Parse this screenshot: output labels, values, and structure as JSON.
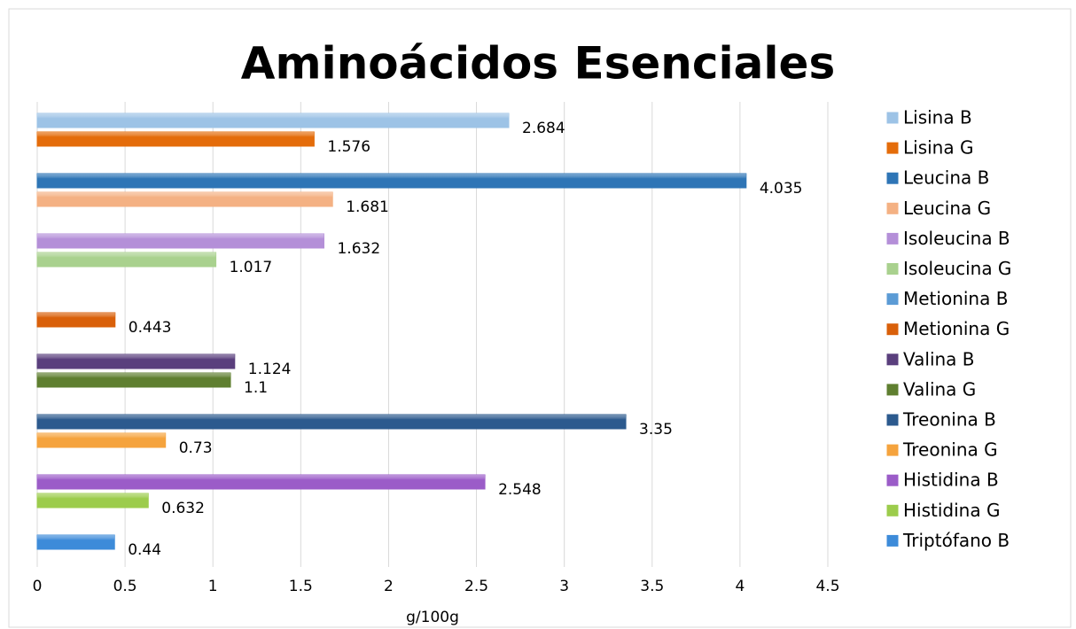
{
  "chart_data": {
    "type": "hbar",
    "title": "Aminoácidos Esenciales",
    "x_label": "g/100g",
    "xlim": [
      0,
      4.5
    ],
    "xticks": [
      0,
      0.5,
      1,
      1.5,
      2,
      2.5,
      3,
      3.5,
      4,
      4.5
    ],
    "grid": true,
    "legend": "right",
    "series": [
      {
        "name": "Lisina B",
        "color": "#9dc3e6",
        "values": [
          2.684
        ]
      },
      {
        "name": "Lisina G",
        "color": "#e46c0a",
        "values": [
          1.576
        ]
      },
      {
        "name": "Leucina B",
        "color": "#2e75b6",
        "values": [
          4.035
        ]
      },
      {
        "name": "Leucina G",
        "color": "#f4b183",
        "values": [
          1.681
        ]
      },
      {
        "name": "Isoleucina B",
        "color": "#b48fd8",
        "values": [
          1.632
        ]
      },
      {
        "name": "Isoleucina G",
        "color": "#a9d18e",
        "values": [
          1.017
        ]
      },
      {
        "name": "Metionina B",
        "color": "#5b9bd5",
        "values": [
          null
        ]
      },
      {
        "name": "Metionina G",
        "color": "#d9600a",
        "values": [
          0.443
        ]
      },
      {
        "name": "Valina B",
        "color": "#5a3f7d",
        "values": [
          1.124
        ]
      },
      {
        "name": "Valina G",
        "color": "#5f7f30",
        "values": [
          1.1
        ]
      },
      {
        "name": "Treonina B",
        "color": "#2c5a8e",
        "values": [
          3.35
        ]
      },
      {
        "name": "Treonina G",
        "color": "#f5a33d",
        "values": [
          0.73
        ]
      },
      {
        "name": "Histidina B",
        "color": "#9b5cc8",
        "values": [
          2.548
        ]
      },
      {
        "name": "Histidina G",
        "color": "#9ccc4c",
        "values": [
          0.632
        ]
      },
      {
        "name": "Triptófano B",
        "color": "#3d8bd9",
        "values": [
          0.44
        ]
      }
    ]
  }
}
